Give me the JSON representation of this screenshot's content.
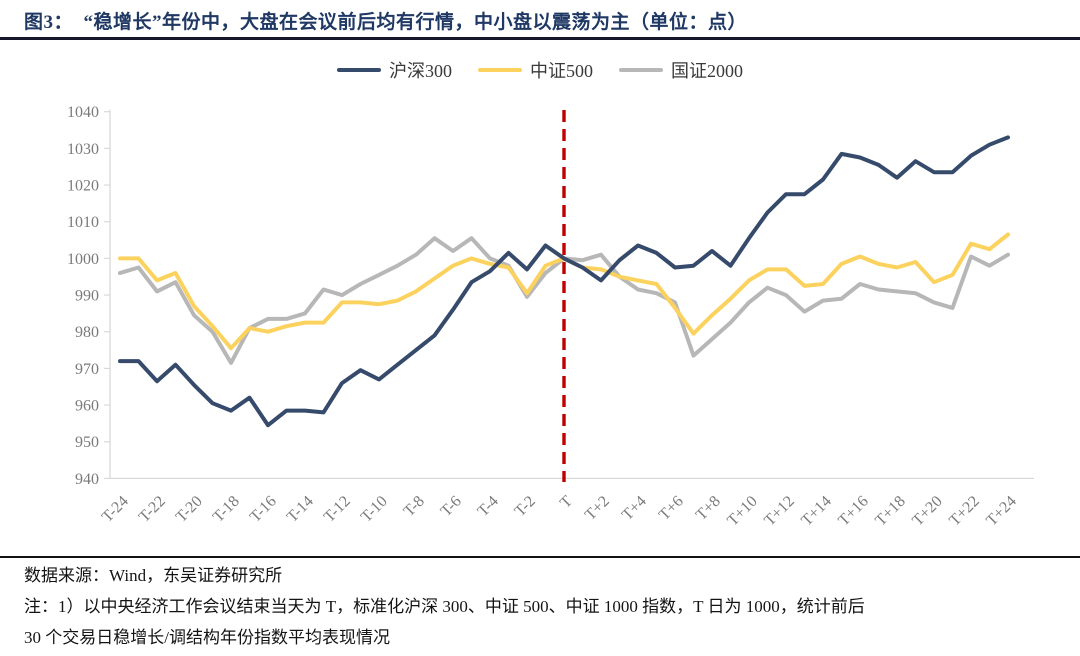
{
  "figure": {
    "title": "图3：  “稳增长”年份中，大盘在会议前后均有行情，中小盘以震荡为主（单位：点）"
  },
  "footer": {
    "source_line": "数据来源：Wind，东吴证券研究所",
    "note_line1": "注：1）以中央经济工作会议结束当天为 T，标准化沪深 300、中证 500、中证 1000 指数，T 日为 1000，统计前后",
    "note_line2": "30 个交易日稳增长/调结构年份指数平均表现情况"
  },
  "chart_data": {
    "type": "line",
    "title": "“稳增长”年份中，大盘在会议前后均有行情，中小盘以震荡为主",
    "unit": "点",
    "xlabel": "",
    "ylabel": "",
    "ylim": [
      940,
      1040
    ],
    "ytick_step": 10,
    "x_start_day": -24,
    "x_end_day": 24,
    "x_tick_labels": [
      "T-24",
      "T-22",
      "T-20",
      "T-18",
      "T-16",
      "T-14",
      "T-12",
      "T-10",
      "T-8",
      "T-6",
      "T-4",
      "T-2",
      "T",
      "T+2",
      "T+4",
      "T+6",
      "T+8",
      "T+10",
      "T+12",
      "T+14",
      "T+16",
      "T+18",
      "T+20",
      "T+22",
      "T+24"
    ],
    "legend_position": "top",
    "grid": false,
    "event_line": {
      "at_label": "T",
      "color": "#c00000",
      "style": "dashed"
    },
    "axis_color": "#d9d9d9",
    "tick_label_color": "#7a7a7a",
    "series": [
      {
        "name": "沪深300",
        "color": "#364a6b",
        "values": [
          972,
          972,
          966.5,
          971,
          965.5,
          960.5,
          958.5,
          962,
          954.5,
          958.5,
          958.5,
          958,
          966,
          969.5,
          967,
          971,
          975,
          979,
          986,
          993.5,
          996.5,
          1001.5,
          997,
          1003.5,
          1000,
          997.5,
          994,
          999.5,
          1003.5,
          1001.5,
          997.5,
          998,
          1002,
          998,
          1005.5,
          1012.5,
          1017.5,
          1017.5,
          1021.5,
          1028.5,
          1027.5,
          1025.5,
          1022,
          1026.5,
          1023.5,
          1023.5,
          1028,
          1031,
          1033
        ]
      },
      {
        "name": "中证500",
        "color": "#fcd25f",
        "values": [
          1000,
          1000,
          994,
          996,
          987,
          981.5,
          975.5,
          981,
          980,
          981.5,
          982.5,
          982.5,
          988,
          988,
          987.5,
          988.5,
          991,
          994.5,
          998,
          1000,
          998.5,
          997.5,
          990.5,
          998,
          1000,
          997.5,
          997,
          995,
          994,
          993,
          986.5,
          979.5,
          984.5,
          989,
          994,
          997,
          997,
          992.5,
          993,
          998.5,
          1000.5,
          998.5,
          997.5,
          999,
          993.5,
          995.5,
          1004,
          1002.5,
          1006.5
        ]
      },
      {
        "name": "国证2000",
        "color": "#b7b7b7",
        "values": [
          996,
          997.5,
          991,
          993.5,
          984.5,
          980,
          971.5,
          981,
          983.5,
          983.5,
          985,
          991.5,
          990,
          993,
          995.5,
          998,
          1001,
          1005.5,
          1002,
          1005.5,
          1000,
          998,
          989.5,
          996,
          1000,
          999.5,
          1001,
          995,
          991.5,
          990.5,
          988,
          973.5,
          978,
          982.5,
          988,
          992,
          990,
          985.5,
          988.5,
          989,
          993,
          991.5,
          991,
          990.5,
          988,
          986.5,
          1000.5,
          998,
          1001
        ]
      }
    ]
  }
}
